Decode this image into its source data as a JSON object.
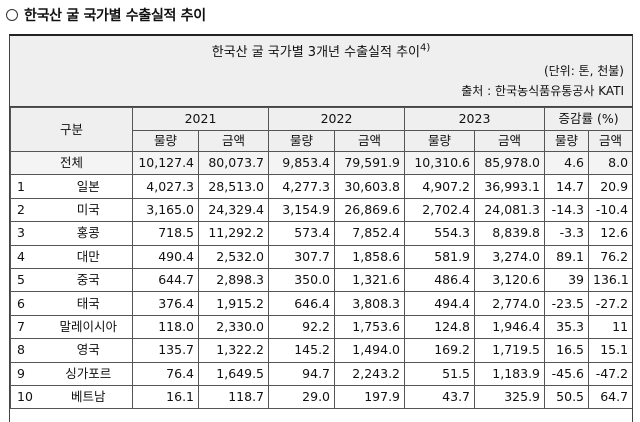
{
  "heading": "한국산 굴 국가별 수출실적 추이",
  "table_title": "한국산 굴 국가별 3개년 수출실적 추이",
  "table_title_sup": "4)",
  "unit": "(단위: 톤, 천불)",
  "source": "출처 : 한국농식품유통공사 KATI",
  "header": {
    "category": "구분",
    "years": [
      "2021",
      "2022",
      "2023"
    ],
    "change": "증감률 (%)",
    "sub": [
      "물량",
      "금액",
      "물량",
      "금액",
      "물량",
      "금액",
      "물량",
      "금액"
    ]
  },
  "total": {
    "label": "전체",
    "values": [
      "10,127.4",
      "80,073.7",
      "9,853.4",
      "79,591.9",
      "10,310.6",
      "85,978.0",
      "4.6",
      "8.0"
    ]
  },
  "rows": [
    {
      "rank": "1",
      "country": "일본",
      "values": [
        "4,027.3",
        "28,513.0",
        "4,277.3",
        "30,603.8",
        "4,907.2",
        "36,993.1",
        "14.7",
        "20.9"
      ]
    },
    {
      "rank": "2",
      "country": "미국",
      "values": [
        "3,165.0",
        "24,329.4",
        "3,154.9",
        "26,869.6",
        "2,702.4",
        "24,081.3",
        "-14.3",
        "-10.4"
      ]
    },
    {
      "rank": "3",
      "country": "홍콩",
      "values": [
        "718.5",
        "11,292.2",
        "573.4",
        "7,852.4",
        "554.3",
        "8,839.8",
        "-3.3",
        "12.6"
      ]
    },
    {
      "rank": "4",
      "country": "대만",
      "values": [
        "490.4",
        "2,532.0",
        "307.7",
        "1,858.6",
        "581.9",
        "3,274.0",
        "89.1",
        "76.2"
      ]
    },
    {
      "rank": "5",
      "country": "중국",
      "values": [
        "644.7",
        "2,898.3",
        "350.0",
        "1,321.6",
        "486.4",
        "3,120.6",
        "39",
        "136.1"
      ]
    },
    {
      "rank": "6",
      "country": "태국",
      "values": [
        "376.4",
        "1,915.2",
        "646.4",
        "3,808.3",
        "494.4",
        "2,774.0",
        "-23.5",
        "-27.2"
      ]
    },
    {
      "rank": "7",
      "country": "말레이시아",
      "values": [
        "118.0",
        "2,330.0",
        "92.2",
        "1,753.6",
        "124.8",
        "1,946.4",
        "35.3",
        "11"
      ]
    },
    {
      "rank": "8",
      "country": "영국",
      "values": [
        "135.7",
        "1,322.2",
        "145.2",
        "1,494.0",
        "169.2",
        "1,719.5",
        "16.5",
        "15.1"
      ]
    },
    {
      "rank": "9",
      "country": "싱가포르",
      "values": [
        "76.4",
        "1,649.5",
        "94.7",
        "2,243.2",
        "51.5",
        "1,183.9",
        "-45.6",
        "-47.2"
      ]
    },
    {
      "rank": "10",
      "country": "베트남",
      "values": [
        "16.1",
        "118.7",
        "29.0",
        "197.9",
        "43.7",
        "325.9",
        "50.5",
        "64.7"
      ]
    }
  ]
}
